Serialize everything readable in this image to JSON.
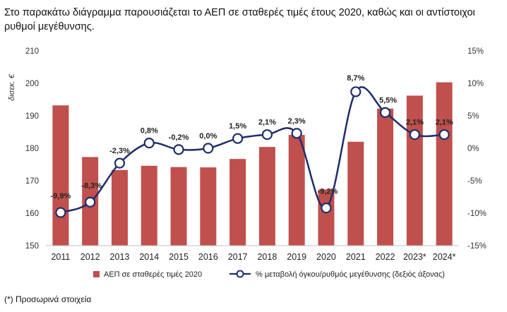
{
  "title": "Στο παρακάτω διάγραμμα παρουσιάζεται το ΑΕΠ σε σταθερές τιμές έτους 2020, καθώς και οι αντίστοιχοι ρυθμοί μεγέθυνσης.",
  "footnote": "(*) Προσωρινά στοιχεία",
  "chart_data": {
    "type": "bar+line",
    "categories": [
      "2011",
      "2012",
      "2013",
      "2014",
      "2015",
      "2016",
      "2017",
      "2018",
      "2019",
      "2020",
      "2021",
      "2022",
      "2023*",
      "2024*"
    ],
    "series": [
      {
        "name": "ΑΕΠ σε σταθερές τιμές 2020",
        "type": "bar",
        "axis": "left",
        "color": "#c0504d",
        "values": [
          193.2,
          177.3,
          173.3,
          174.6,
          174.2,
          174.1,
          176.7,
          180.4,
          184.1,
          167.3,
          182.0,
          192.2,
          196.2,
          200.3
        ]
      },
      {
        "name": "% μεταβολή όγκου/ρυθμός μεγέθυνσης (δεξιός άξονας)",
        "type": "line",
        "axis": "right",
        "color": "#1f2d6b",
        "values": [
          -9.9,
          -8.3,
          -2.3,
          0.8,
          -0.2,
          0.0,
          1.5,
          2.1,
          2.3,
          -9.2,
          8.7,
          5.5,
          2.1,
          2.1
        ],
        "labels": [
          "-9,9%",
          "-8,3%",
          "-2,3%",
          "0,8%",
          "-0,2%",
          "0,0%",
          "1,5%",
          "2,1%",
          "2,3%",
          "-9,2%",
          "8,7%",
          "5,5%",
          "2,1%",
          "2,1%"
        ]
      }
    ],
    "ylabel": "δισεκ. €",
    "ylim": [
      150,
      210
    ],
    "yticks": [
      "150",
      "160",
      "170",
      "180",
      "190",
      "200",
      "210"
    ],
    "y2lim": [
      -15,
      15
    ],
    "y2ticks": [
      "-15%",
      "-10%",
      "-5%",
      "0%",
      "5%",
      "10%",
      "15%"
    ],
    "legend": "bottom"
  }
}
